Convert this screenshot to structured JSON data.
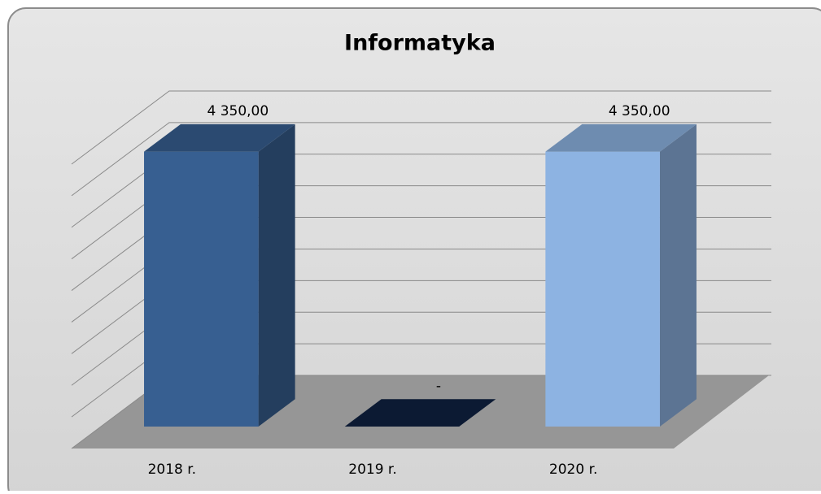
{
  "chart_data": {
    "type": "bar",
    "title": "Informatyka",
    "categories": [
      "2018 r.",
      "2019 r.",
      "2020 r."
    ],
    "values": [
      4350,
      0,
      4350
    ],
    "value_labels": [
      "4 350,00",
      "-",
      "4 350,00"
    ],
    "colors": [
      "#375f91",
      "#0c1a33",
      "#8db3e2"
    ],
    "ylim": [
      0,
      4500
    ],
    "yticks": [
      0,
      500,
      1000,
      1500,
      2000,
      2500,
      3000,
      3500,
      4000,
      4500
    ],
    "grid": true
  }
}
